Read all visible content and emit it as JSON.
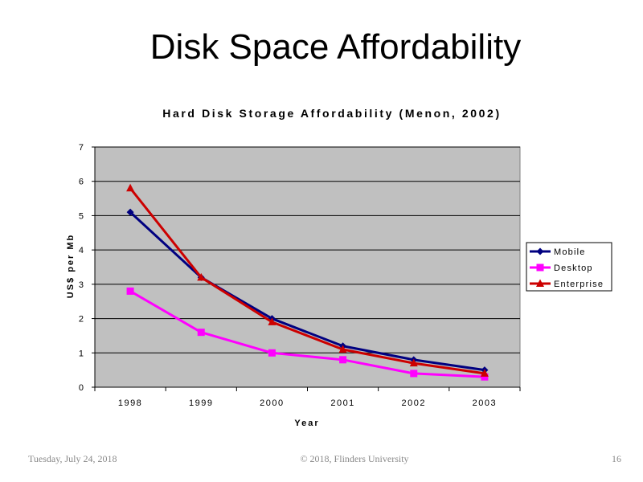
{
  "slide": {
    "title": "Disk Space Affordability"
  },
  "footer": {
    "date": "Tuesday, July 24, 2018",
    "copyright": "© 2018, Flinders University",
    "page_number": "16"
  },
  "chart_data": {
    "type": "line",
    "title": "Hard Disk Storage Affordability (Menon, 2002)",
    "xlabel": "Year",
    "ylabel": "US$ per Mb",
    "categories": [
      "1998",
      "1999",
      "2000",
      "2001",
      "2002",
      "2003"
    ],
    "ylim": [
      0,
      7
    ],
    "yticks": [
      0,
      1,
      2,
      3,
      4,
      5,
      6,
      7
    ],
    "grid": true,
    "legend_position": "right",
    "plot_background": "#c0c0c0",
    "series": [
      {
        "name": "Mobile",
        "color": "#000080",
        "marker": "diamond",
        "values": [
          5.1,
          3.2,
          2.0,
          1.2,
          0.8,
          0.5
        ]
      },
      {
        "name": "Desktop",
        "color": "#ff00ff",
        "marker": "square",
        "values": [
          2.8,
          1.6,
          1.0,
          0.8,
          0.4,
          0.3
        ]
      },
      {
        "name": "Enterprise",
        "color": "#cc0000",
        "marker": "triangle",
        "values": [
          5.8,
          3.2,
          1.9,
          1.1,
          0.7,
          0.4
        ]
      }
    ]
  }
}
